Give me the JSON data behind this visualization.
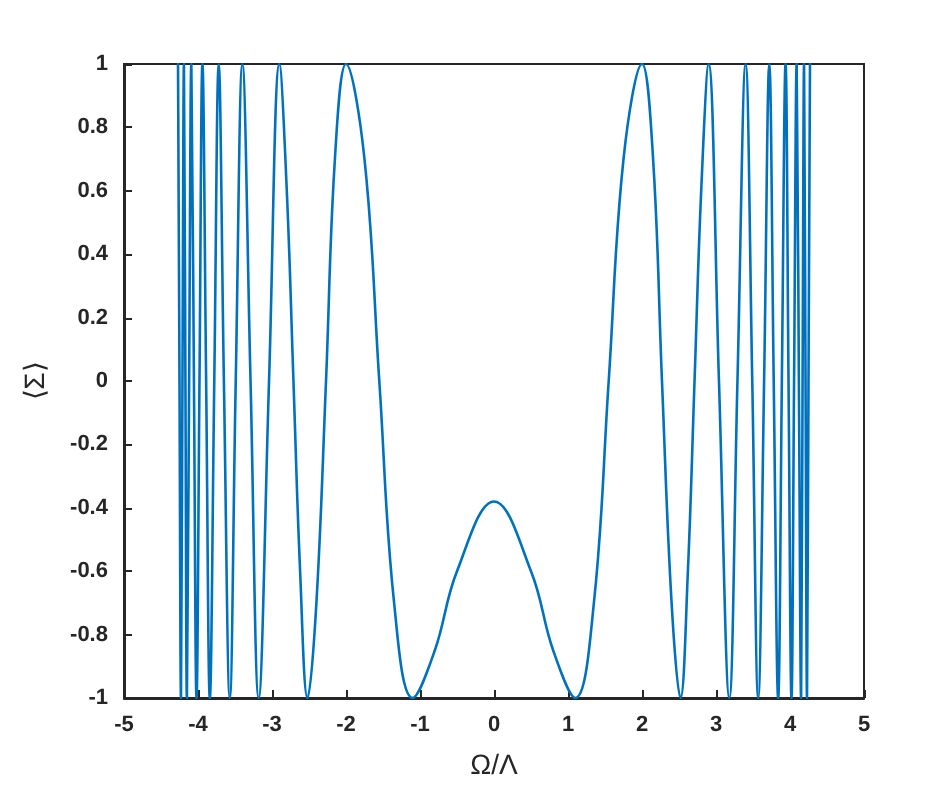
{
  "chart_data": {
    "type": "line",
    "xlabel": "Ω/Λ",
    "ylabel": "⟨Σ⟩",
    "x": [
      -4.27,
      -4.25,
      -4.23,
      -4.21,
      -4.19,
      -4.17,
      -4.15,
      -4.12,
      -4.09,
      -4.055,
      -4.02,
      -3.98,
      -3.94,
      -3.89,
      -3.84,
      -3.78,
      -3.72,
      -3.65,
      -3.57,
      -3.49,
      -3.4,
      -3.29,
      -3.18,
      -3.04,
      -2.9,
      -2.8,
      -2.71,
      -2.62,
      -2.52,
      -2.4,
      -2.27,
      -2.15,
      -2.0,
      -1.75,
      -1.55,
      -1.35,
      -1.1,
      -0.8,
      -0.5,
      0,
      0.5,
      0.8,
      1.1,
      1.35,
      1.55,
      1.75,
      2.0,
      2.15,
      2.27,
      2.4,
      2.52,
      2.62,
      2.71,
      2.8,
      2.9,
      3.04,
      3.18,
      3.29,
      3.4,
      3.49,
      3.57,
      3.65,
      3.72,
      3.78,
      3.84,
      3.89,
      3.94,
      3.98,
      4.02,
      4.055,
      4.09,
      4.12,
      4.15,
      4.17,
      4.19,
      4.21,
      4.23,
      4.25,
      4.27
    ],
    "series": [
      {
        "color": "#0072bd",
        "values": [
          1,
          0,
          -1,
          0,
          1,
          0,
          -1,
          0,
          1,
          0,
          -1,
          0,
          1,
          0,
          -1,
          0,
          1,
          0,
          -1,
          0,
          1,
          0,
          -1,
          0,
          1,
          0.6,
          0,
          -0.6,
          -1,
          -0.7,
          0,
          0.7,
          1,
          0.7,
          0,
          -0.7,
          -1,
          -0.85,
          -0.6,
          -0.38,
          -0.6,
          -0.85,
          -1,
          -0.7,
          0,
          0.7,
          1,
          0.7,
          0,
          -0.7,
          -1,
          -0.6,
          0,
          0.6,
          1,
          0,
          -1,
          0,
          1,
          0,
          -1,
          0,
          1,
          0,
          -1,
          0,
          1,
          0,
          -1,
          0,
          1,
          0,
          -1,
          0,
          1,
          0,
          -1,
          0,
          1
        ]
      }
    ],
    "xlim": [
      -5,
      5
    ],
    "xticks": [
      -5,
      -4,
      -3,
      -2,
      -1,
      0,
      1,
      2,
      3,
      4,
      5
    ],
    "ylim": [
      -1,
      1
    ],
    "yticks": [
      -1,
      -0.8,
      -0.6,
      -0.4,
      -0.2,
      0,
      0.2,
      0.4,
      0.6,
      0.8,
      1
    ],
    "grid": false,
    "marker": "none",
    "line_style": "solid"
  }
}
